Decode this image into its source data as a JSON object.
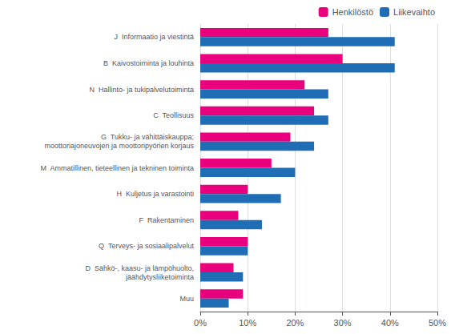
{
  "chart_data": {
    "type": "bar",
    "orientation": "horizontal",
    "categories": [
      "J  Informaatio ja viestintä",
      "B  Kaivostoiminta ja louhinta",
      "N  Hallinto- ja tukipalvelutoiminta",
      "C  Teollisuus",
      "G  Tukku- ja vähittäiskauppa;\n    moottoriajoneuvojen ja moottoripyörien korjaus",
      "M  Ammatillinen, tieteellinen ja tekninen toiminta",
      "H  Kuljetus ja varastointi",
      "F  Rakentaminen",
      "Q  Terveys- ja sosiaalipalvelut",
      "D  Sähkö-, kaasu- ja lämpöhuolto,\n    jäähdytysliiketoiminta",
      "Muu"
    ],
    "series": [
      {
        "name": "Henkilöstö",
        "color": "#e8007d",
        "values": [
          27,
          30,
          22,
          24,
          19,
          15,
          10,
          8,
          10,
          7,
          9
        ]
      },
      {
        "name": "Liikevaihto",
        "color": "#1f6db5",
        "values": [
          41,
          41,
          27,
          27,
          24,
          20,
          17,
          13,
          10,
          9,
          6
        ]
      }
    ],
    "xlim": [
      0,
      50
    ],
    "xticks": [
      {
        "value": 0,
        "label": "0%"
      },
      {
        "value": 10,
        "label": "10%"
      },
      {
        "value": 20,
        "label": "20%"
      },
      {
        "value": 30,
        "label": "30%"
      },
      {
        "value": 40,
        "label": "40%"
      },
      {
        "value": 50,
        "label": "50%"
      }
    ],
    "grid": true,
    "legend": "upper right"
  }
}
